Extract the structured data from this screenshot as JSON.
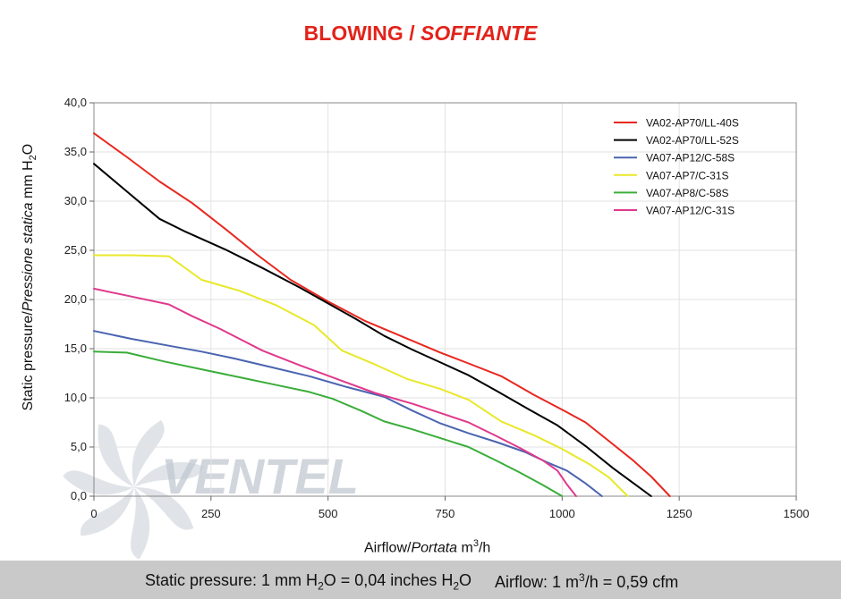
{
  "title": {
    "main": "BLOWING",
    "sep": "/",
    "italic": "SOFFIANTE"
  },
  "footer": {
    "pressure_note": "Static pressure: 1 mm H2O = 0,04 inches H2O",
    "pressure_parts": [
      "Static pressure: 1 mm H",
      "2",
      "O = 0,04 inches H",
      "2",
      "O"
    ],
    "airflow_note": "Airflow: 1 m3/h = 0,59 cfm",
    "airflow_parts": [
      "Airflow: 1 m",
      "3",
      "/h = 0,59 cfm"
    ]
  },
  "watermark": {
    "text": "VENTEL",
    "colors": [
      "#bfc6cf",
      "#8fb0d6"
    ]
  },
  "chart_data": {
    "type": "line",
    "title": "BLOWING / SOFFIANTE",
    "xlabel": "Airflow / Portata m3/h",
    "xlabel_parts": [
      "Airflow",
      "/",
      "Portata",
      "m",
      "3",
      "/h"
    ],
    "ylabel": "Static pressure / Pressione statica mm H2O",
    "ylabel_parts": [
      "Static pressure",
      "/",
      "Pressione statica",
      "mm H",
      "2",
      "O"
    ],
    "xlim": [
      0,
      1500
    ],
    "ylim": [
      0,
      40
    ],
    "xticks": [
      "0",
      "250",
      "500",
      "750",
      "1000",
      "1250",
      "1500"
    ],
    "yticks": [
      "0,0",
      "5,0",
      "10,0",
      "15,0",
      "20,0",
      "25,0",
      "30,0",
      "35,0",
      "40,0"
    ],
    "grid": true,
    "legend_position": "top-right",
    "series": [
      {
        "name": "VA02-AP70/LL-40S",
        "color": "#e8271f",
        "x": [
          0,
          70,
          140,
          210,
          280,
          350,
          420,
          500,
          580,
          660,
          740,
          800,
          870,
          940,
          1000,
          1050,
          1100,
          1150,
          1190,
          1230
        ],
        "y": [
          36.9,
          34.5,
          32.0,
          29.8,
          27.2,
          24.5,
          22.0,
          19.8,
          17.8,
          16.2,
          14.6,
          13.5,
          12.2,
          10.3,
          8.8,
          7.5,
          5.6,
          3.7,
          2.0,
          0.0
        ]
      },
      {
        "name": "VA02-AP70/LL-52S",
        "color": "#000000",
        "x": [
          0,
          70,
          140,
          195,
          280,
          360,
          440,
          500,
          560,
          620,
          680,
          740,
          800,
          860,
          930,
          990,
          1050,
          1110,
          1150,
          1190
        ],
        "y": [
          33.8,
          31.0,
          28.2,
          26.9,
          25.1,
          23.2,
          21.2,
          19.6,
          18.0,
          16.3,
          14.9,
          13.6,
          12.3,
          10.7,
          8.8,
          7.2,
          5.1,
          2.8,
          1.4,
          0.0
        ]
      },
      {
        "name": "VA07-AP12/C-58S",
        "color": "#4a64b0",
        "x": [
          0,
          80,
          160,
          230,
          300,
          380,
          460,
          540,
          620,
          680,
          740,
          800,
          860,
          920,
          970,
          1010,
          1050,
          1085
        ],
        "y": [
          16.8,
          16.0,
          15.3,
          14.7,
          14.0,
          13.1,
          12.2,
          11.1,
          10.1,
          8.7,
          7.4,
          6.4,
          5.5,
          4.5,
          3.4,
          2.6,
          1.3,
          0.0
        ]
      },
      {
        "name": "VA07-AP7/C-31S",
        "color": "#e8e82a",
        "x": [
          0,
          80,
          160,
          230,
          310,
          390,
          470,
          530,
          600,
          670,
          740,
          800,
          870,
          940,
          1000,
          1060,
          1100,
          1140
        ],
        "y": [
          24.5,
          24.5,
          24.4,
          22.0,
          20.9,
          19.4,
          17.4,
          14.8,
          13.4,
          11.9,
          10.9,
          9.8,
          7.6,
          6.2,
          4.8,
          3.2,
          1.9,
          0.0
        ]
      },
      {
        "name": "VA07-AP8/C-58S",
        "color": "#3aad3a",
        "x": [
          0,
          70,
          150,
          230,
          310,
          390,
          460,
          510,
          570,
          620,
          680,
          740,
          800,
          860,
          910,
          960,
          1000
        ],
        "y": [
          14.7,
          14.6,
          13.7,
          12.9,
          12.1,
          11.3,
          10.6,
          9.9,
          8.7,
          7.6,
          6.8,
          5.9,
          5.0,
          3.6,
          2.4,
          1.1,
          0.0
        ]
      },
      {
        "name": "VA07-AP12/C-31S",
        "color": "#e0398c",
        "x": [
          0,
          80,
          160,
          210,
          270,
          360,
          440,
          520,
          600,
          680,
          750,
          800,
          860,
          910,
          960,
          990,
          1010,
          1030
        ],
        "y": [
          21.1,
          20.3,
          19.5,
          18.3,
          17.0,
          14.8,
          13.3,
          11.9,
          10.5,
          9.4,
          8.3,
          7.5,
          6.1,
          4.9,
          3.6,
          2.6,
          1.2,
          0.0
        ]
      }
    ]
  }
}
